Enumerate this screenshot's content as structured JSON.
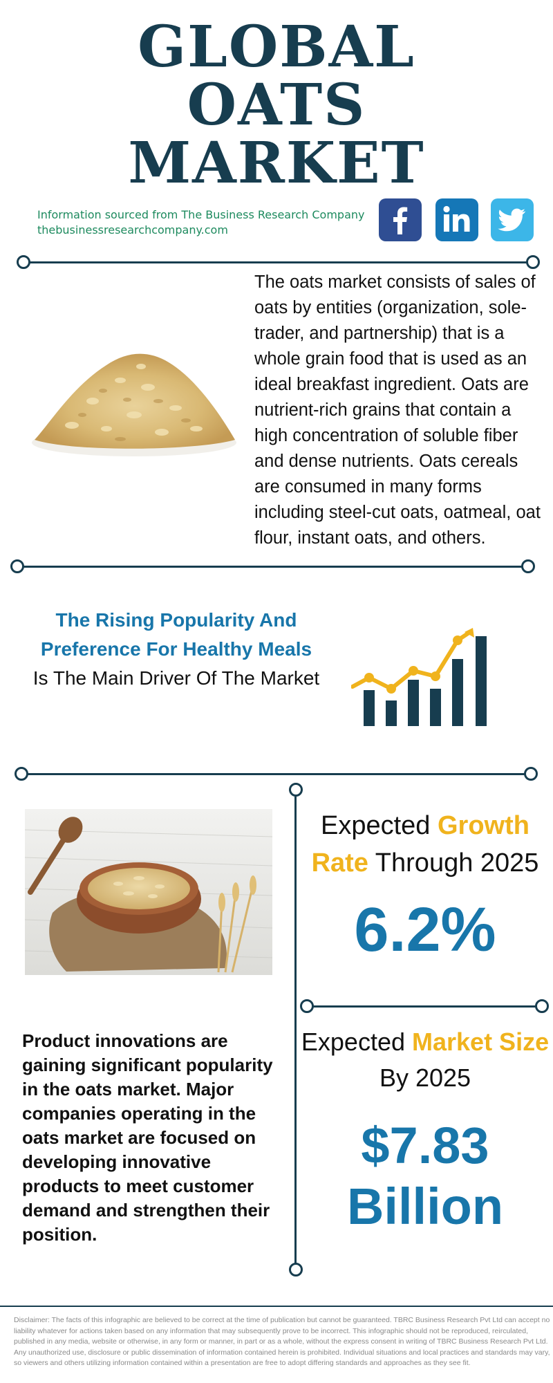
{
  "header": {
    "title_line1": "GLOBAL",
    "title_line2": "OATS",
    "title_line3": "MARKET",
    "source_line1": "Information sourced from The Business Research Company",
    "source_line2": "thebusinessresearchcompany.com"
  },
  "social": {
    "facebook_icon": "facebook-icon",
    "linkedin_icon": "linkedin-icon",
    "twitter_icon": "twitter-icon",
    "colors": {
      "facebook": "#2f4e93",
      "linkedin": "#1577b7",
      "twitter": "#3cb6e8"
    }
  },
  "intro": {
    "text": "The oats market consists of sales of oats by entities (organization, sole-trader, and partnership) that is a whole grain food that is used as an ideal breakfast ingredient. Oats are nutrient-rich grains that contain a high concentration of soluble fiber and dense nutrients. Oats cereals are consumed in many forms including steel-cut oats, oatmeal, oat flour, instant oats, and others."
  },
  "driver": {
    "highlight": "The Rising Popularity And Preference For Healthy Meals",
    "rest": "Is The Main Driver Of The Market"
  },
  "growth": {
    "label_pre": "Expected ",
    "label_hl1": "Growth",
    "label_hl2": "Rate",
    "label_post": " Through 2025",
    "value": "6.2%"
  },
  "market_size": {
    "label_pre": "Expected ",
    "label_hl": "Market Size",
    "label_post": "By 2025",
    "value_line1": "$7.83",
    "value_line2": "Billion"
  },
  "innovation": {
    "text": "Product innovations are gaining significant popularity in the oats market. Major companies operating in the oats market are focused on developing innovative products to meet customer demand and strengthen their position."
  },
  "footer": {
    "disclaimer": "Disclaimer: The facts of this infographic are believed to be correct at the time of publication but cannot be guaranteed. TBRC Business Research Pvt Ltd can accept no liability whatever for actions taken based on any information that may subsequently prove to be incorrect. This infographic should not be reproduced, reirculated, published in any media, website or otherwise, in any form or manner, in part or as a whole, without the express consent in writing of TBRC Business Research Pvt Ltd. Any unauthorized use, disclosure or public dissemination of information contained herein is prohibited. Individual situations and local practices and standards may vary, so viewers and others utilizing information contained within a presentation are free to adopt differing standards and approaches as they see fit."
  },
  "theme": {
    "navy": "#173d4f",
    "blue": "#1876aa",
    "yellow": "#f0b31d",
    "green": "#1d8a5e"
  }
}
